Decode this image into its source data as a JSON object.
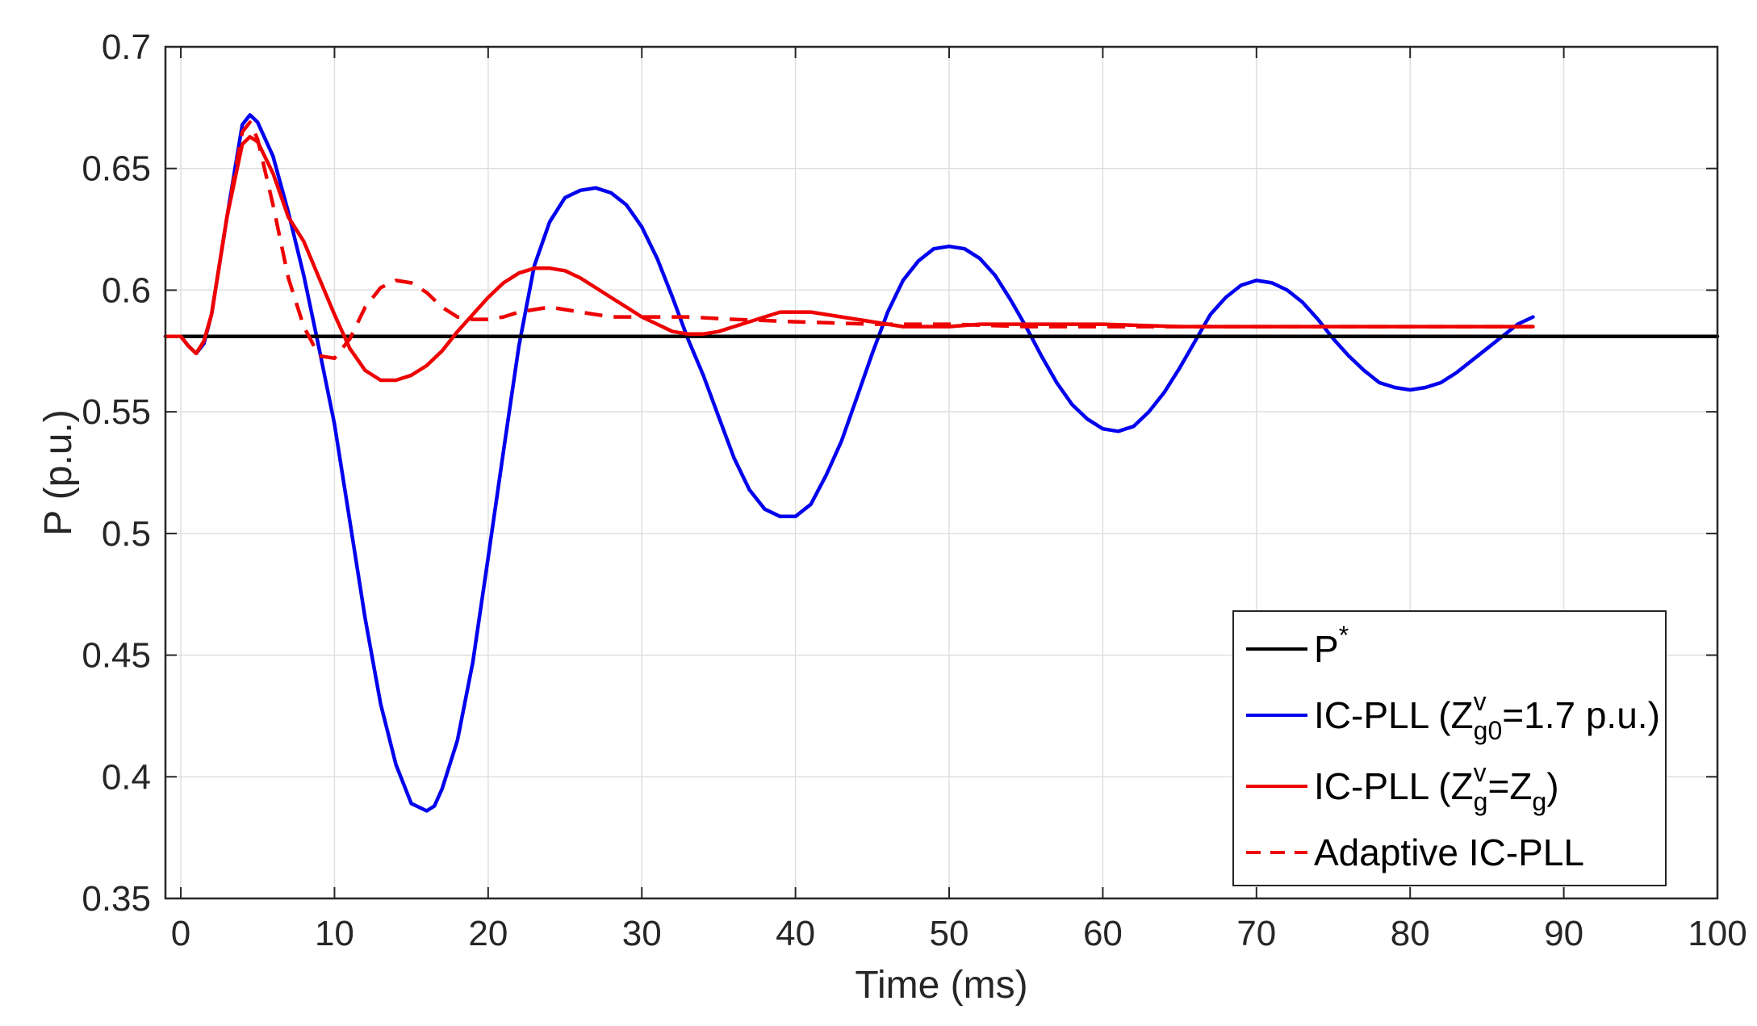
{
  "chart_data": {
    "type": "line",
    "title": "",
    "xlabel": "Time (ms)",
    "ylabel": "P (p.u.)",
    "xlim": [
      -1,
      100
    ],
    "ylim": [
      0.35,
      0.7
    ],
    "grid": true,
    "legend_position": "bottom-right",
    "xticks": [
      0,
      10,
      20,
      30,
      40,
      50,
      60,
      70,
      80,
      90,
      100
    ],
    "xtick_labels": [
      "0",
      "10",
      "20",
      "30",
      "40",
      "50",
      "60",
      "70",
      "80",
      "90",
      "100"
    ],
    "yticks": [
      0.35,
      0.4,
      0.45,
      0.5,
      0.55,
      0.6,
      0.65,
      0.7
    ],
    "ytick_labels": [
      "0.35",
      "0.4",
      "0.45",
      "0.5",
      "0.55",
      "0.6",
      "0.65",
      "0.7"
    ],
    "series": [
      {
        "name": "P*",
        "legend": {
          "main": "P",
          "sup": "*"
        },
        "color": "#000000",
        "style": "solid",
        "points": [
          [
            -1,
            0.581
          ],
          [
            100,
            0.581
          ]
        ]
      },
      {
        "name": "IC-PLL (Zvg0=1.7 p.u.)",
        "legend": {
          "prefix": "IC-PLL (Z",
          "sup": "v",
          "sub": "g0",
          "suffix": "=1.7 p.u.)"
        },
        "color": "#0000ee",
        "style": "solid",
        "points": [
          [
            -1,
            0.581
          ],
          [
            0,
            0.581
          ],
          [
            0.5,
            0.577
          ],
          [
            1,
            0.574
          ],
          [
            1.5,
            0.578
          ],
          [
            2,
            0.59
          ],
          [
            3,
            0.63
          ],
          [
            4,
            0.668
          ],
          [
            4.5,
            0.672
          ],
          [
            5,
            0.669
          ],
          [
            6,
            0.655
          ],
          [
            7,
            0.632
          ],
          [
            8,
            0.606
          ],
          [
            9,
            0.576
          ],
          [
            10,
            0.545
          ],
          [
            11,
            0.505
          ],
          [
            12,
            0.465
          ],
          [
            13,
            0.43
          ],
          [
            14,
            0.405
          ],
          [
            15,
            0.389
          ],
          [
            16,
            0.386
          ],
          [
            16.5,
            0.388
          ],
          [
            17,
            0.395
          ],
          [
            18,
            0.415
          ],
          [
            19,
            0.447
          ],
          [
            20,
            0.49
          ],
          [
            21,
            0.534
          ],
          [
            22,
            0.577
          ],
          [
            23,
            0.61
          ],
          [
            24,
            0.628
          ],
          [
            25,
            0.638
          ],
          [
            26,
            0.641
          ],
          [
            27,
            0.642
          ],
          [
            28,
            0.64
          ],
          [
            29,
            0.635
          ],
          [
            30,
            0.626
          ],
          [
            31,
            0.613
          ],
          [
            32,
            0.597
          ],
          [
            33,
            0.58
          ],
          [
            34,
            0.565
          ],
          [
            35,
            0.548
          ],
          [
            36,
            0.531
          ],
          [
            37,
            0.518
          ],
          [
            38,
            0.51
          ],
          [
            39,
            0.507
          ],
          [
            40,
            0.507
          ],
          [
            41,
            0.512
          ],
          [
            42,
            0.524
          ],
          [
            43,
            0.538
          ],
          [
            44,
            0.556
          ],
          [
            45,
            0.574
          ],
          [
            46,
            0.591
          ],
          [
            47,
            0.604
          ],
          [
            48,
            0.612
          ],
          [
            49,
            0.617
          ],
          [
            50,
            0.618
          ],
          [
            51,
            0.617
          ],
          [
            52,
            0.613
          ],
          [
            53,
            0.606
          ],
          [
            54,
            0.596
          ],
          [
            55,
            0.585
          ],
          [
            56,
            0.573
          ],
          [
            57,
            0.562
          ],
          [
            58,
            0.553
          ],
          [
            59,
            0.547
          ],
          [
            60,
            0.543
          ],
          [
            61,
            0.542
          ],
          [
            62,
            0.544
          ],
          [
            63,
            0.55
          ],
          [
            64,
            0.558
          ],
          [
            65,
            0.568
          ],
          [
            66,
            0.579
          ],
          [
            67,
            0.59
          ],
          [
            68,
            0.597
          ],
          [
            69,
            0.602
          ],
          [
            70,
            0.604
          ],
          [
            71,
            0.603
          ],
          [
            72,
            0.6
          ],
          [
            73,
            0.595
          ],
          [
            74,
            0.588
          ],
          [
            75,
            0.58
          ],
          [
            76,
            0.573
          ],
          [
            77,
            0.567
          ],
          [
            78,
            0.562
          ],
          [
            79,
            0.56
          ],
          [
            80,
            0.559
          ],
          [
            81,
            0.56
          ],
          [
            82,
            0.562
          ],
          [
            83,
            0.566
          ],
          [
            84,
            0.571
          ],
          [
            85,
            0.576
          ],
          [
            86,
            0.581
          ],
          [
            87,
            0.586
          ],
          [
            88,
            0.589
          ]
        ]
      },
      {
        "name": "IC-PLL (Zvg=Zg)",
        "legend": {
          "prefix": "IC-PLL (Z",
          "sup": "v",
          "sub": "g",
          "suffix": "=Z",
          "sub2": "g",
          "suffix2": ")"
        },
        "color": "#ee0000",
        "style": "solid",
        "points": [
          [
            -1,
            0.581
          ],
          [
            0,
            0.581
          ],
          [
            0.5,
            0.577
          ],
          [
            1,
            0.574
          ],
          [
            1.5,
            0.579
          ],
          [
            2,
            0.59
          ],
          [
            3,
            0.63
          ],
          [
            4,
            0.66
          ],
          [
            4.5,
            0.663
          ],
          [
            5,
            0.661
          ],
          [
            6,
            0.648
          ],
          [
            7,
            0.63
          ],
          [
            8,
            0.62
          ],
          [
            9,
            0.605
          ],
          [
            10,
            0.59
          ],
          [
            11,
            0.576
          ],
          [
            12,
            0.567
          ],
          [
            13,
            0.563
          ],
          [
            14,
            0.563
          ],
          [
            15,
            0.565
          ],
          [
            16,
            0.569
          ],
          [
            17,
            0.575
          ],
          [
            18,
            0.583
          ],
          [
            19,
            0.59
          ],
          [
            20,
            0.597
          ],
          [
            21,
            0.603
          ],
          [
            22,
            0.607
          ],
          [
            23,
            0.609
          ],
          [
            24,
            0.609
          ],
          [
            25,
            0.608
          ],
          [
            26,
            0.605
          ],
          [
            27,
            0.601
          ],
          [
            28,
            0.597
          ],
          [
            29,
            0.593
          ],
          [
            30,
            0.589
          ],
          [
            31,
            0.586
          ],
          [
            32,
            0.583
          ],
          [
            33,
            0.582
          ],
          [
            34,
            0.582
          ],
          [
            35,
            0.583
          ],
          [
            36,
            0.585
          ],
          [
            37,
            0.587
          ],
          [
            38,
            0.589
          ],
          [
            39,
            0.591
          ],
          [
            40,
            0.591
          ],
          [
            41,
            0.591
          ],
          [
            42,
            0.59
          ],
          [
            43,
            0.589
          ],
          [
            44,
            0.588
          ],
          [
            45,
            0.587
          ],
          [
            46,
            0.586
          ],
          [
            47,
            0.585
          ],
          [
            48,
            0.585
          ],
          [
            50,
            0.585
          ],
          [
            52,
            0.586
          ],
          [
            56,
            0.586
          ],
          [
            60,
            0.586
          ],
          [
            65,
            0.585
          ],
          [
            70,
            0.585
          ],
          [
            80,
            0.585
          ],
          [
            88,
            0.585
          ]
        ]
      },
      {
        "name": "Adaptive IC-PLL",
        "legend": {
          "main": "Adaptive IC-PLL"
        },
        "color": "#ee0000",
        "style": "dashed",
        "points": [
          [
            -1,
            0.581
          ],
          [
            0,
            0.581
          ],
          [
            0.5,
            0.577
          ],
          [
            1,
            0.574
          ],
          [
            1.5,
            0.579
          ],
          [
            2,
            0.59
          ],
          [
            3,
            0.63
          ],
          [
            4,
            0.665
          ],
          [
            4.5,
            0.669
          ],
          [
            5,
            0.662
          ],
          [
            6,
            0.635
          ],
          [
            7,
            0.605
          ],
          [
            8,
            0.585
          ],
          [
            9,
            0.573
          ],
          [
            10,
            0.572
          ],
          [
            11,
            0.58
          ],
          [
            12,
            0.593
          ],
          [
            13,
            0.601
          ],
          [
            14,
            0.604
          ],
          [
            15,
            0.603
          ],
          [
            16,
            0.599
          ],
          [
            17,
            0.593
          ],
          [
            18,
            0.589
          ],
          [
            19,
            0.588
          ],
          [
            20,
            0.588
          ],
          [
            21,
            0.589
          ],
          [
            22,
            0.591
          ],
          [
            23,
            0.592
          ],
          [
            24,
            0.593
          ],
          [
            25,
            0.592
          ],
          [
            26,
            0.591
          ],
          [
            27,
            0.59
          ],
          [
            28,
            0.589
          ],
          [
            30,
            0.589
          ],
          [
            33,
            0.589
          ],
          [
            36,
            0.588
          ],
          [
            40,
            0.587
          ],
          [
            45,
            0.586
          ],
          [
            50,
            0.586
          ],
          [
            55,
            0.585
          ],
          [
            60,
            0.585
          ],
          [
            70,
            0.585
          ],
          [
            80,
            0.585
          ],
          [
            88,
            0.585
          ]
        ]
      }
    ]
  }
}
